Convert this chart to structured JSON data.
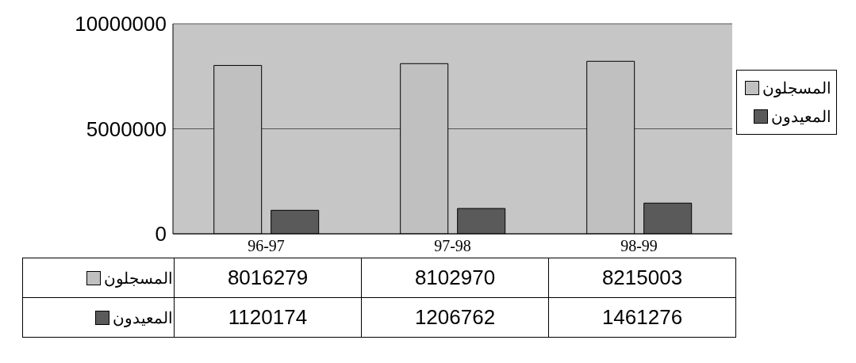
{
  "chart_data": {
    "type": "bar",
    "categories": [
      "96-97",
      "97-98",
      "98-99"
    ],
    "series": [
      {
        "name": "المسجلون",
        "color": "#c0c0c0",
        "values": [
          8016279,
          8102970,
          8215003
        ]
      },
      {
        "name": "المعيدون",
        "color": "#5a5a5a",
        "values": [
          1120174,
          1206762,
          1461276
        ]
      }
    ],
    "ylim": [
      0,
      10000000
    ],
    "yticks": [
      0,
      5000000,
      10000000
    ],
    "grid": "y",
    "legend": "right",
    "data_labels": true
  }
}
